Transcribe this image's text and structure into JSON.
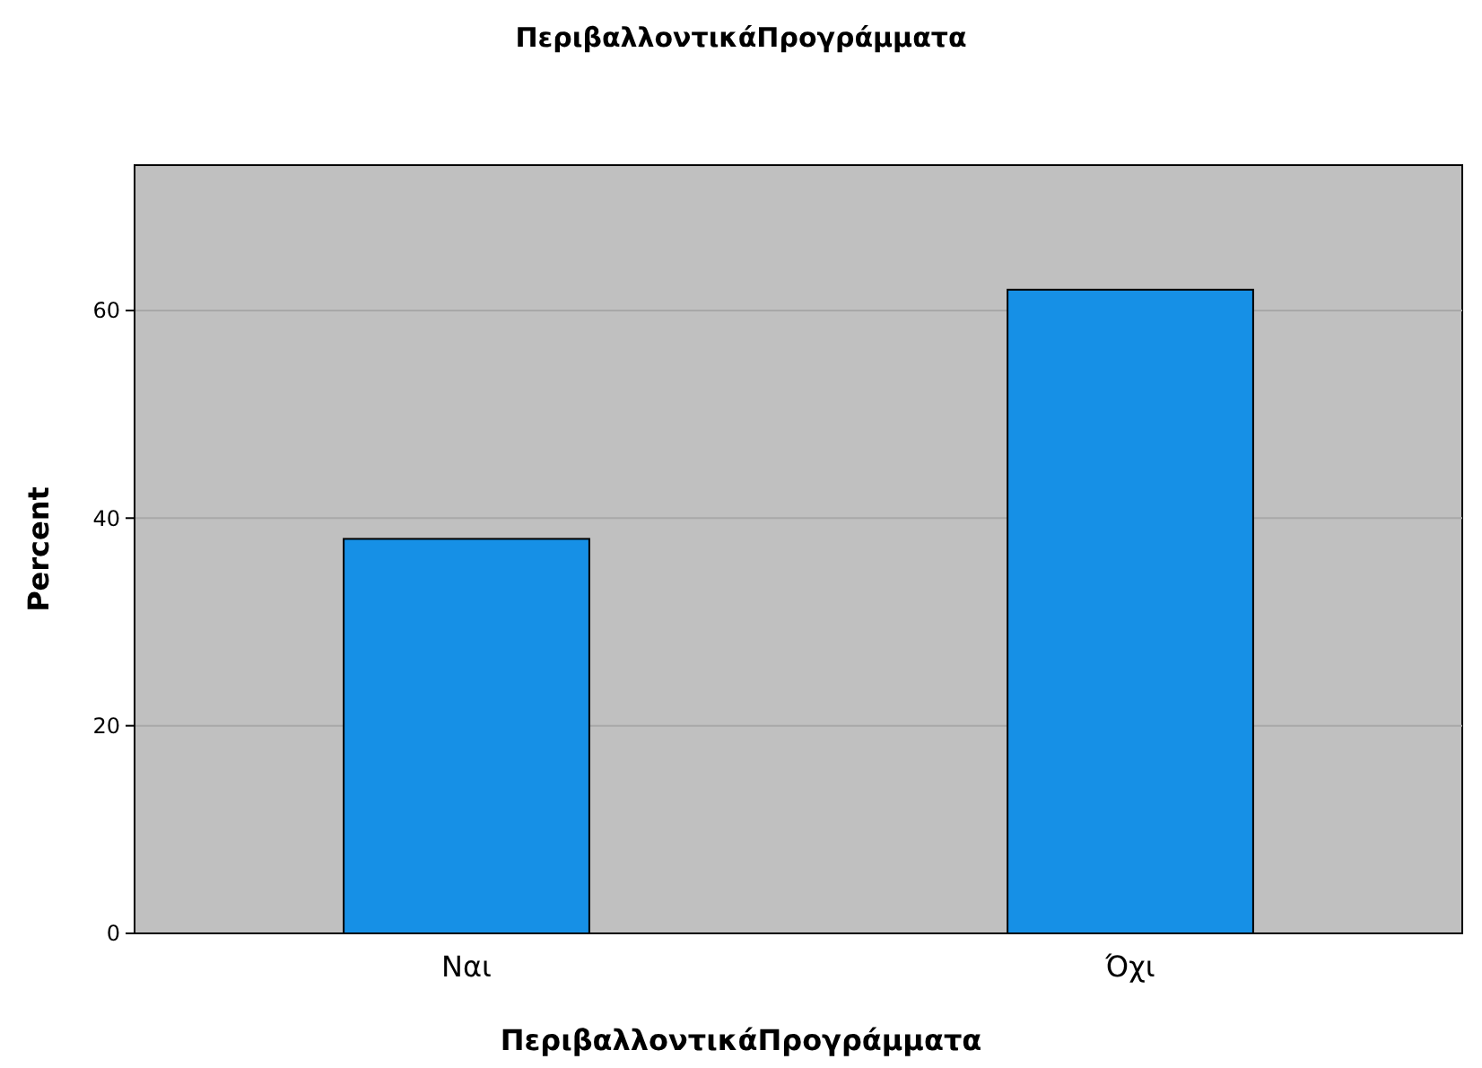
{
  "chart_data": {
    "type": "bar",
    "title": "ΠεριβαλλοντικάΠρογράμματα",
    "xlabel": "ΠεριβαλλοντικάΠρογράμματα",
    "ylabel": "Percent",
    "categories": [
      "Ναι",
      "Όχι"
    ],
    "values": [
      38,
      62
    ],
    "color": "#1690e6",
    "ylim": [
      0,
      74
    ],
    "yticks": [
      0,
      20,
      40,
      60
    ],
    "grid": "y"
  }
}
